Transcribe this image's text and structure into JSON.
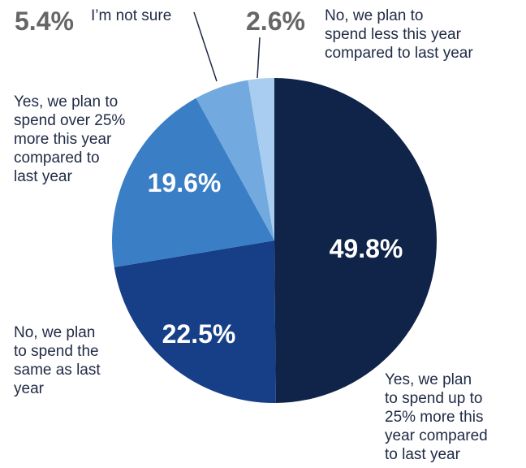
{
  "chart_data": {
    "type": "pie",
    "start_angle_deg": 0,
    "direction": "clockwise",
    "slices": [
      {
        "label": "Yes, we plan to spend up to 25% more this year compared to last year",
        "value": 49.8,
        "value_label": "49.8%",
        "color": "#0f2448"
      },
      {
        "label": "No, we plan to spend the same as last year",
        "value": 22.5,
        "value_label": "22.5%",
        "color": "#173f87"
      },
      {
        "label": "Yes, we plan to spend over 25% more this year compared to last year",
        "value": 19.6,
        "value_label": "19.6%",
        "color": "#3a7ec6"
      },
      {
        "label": "I'm not sure",
        "value": 5.4,
        "value_label": "5.4%",
        "color": "#72aadf"
      },
      {
        "label": "No, we plan to spend less this year compared to last year",
        "value": 2.6,
        "value_label": "2.6%",
        "color": "#a9cdf0"
      }
    ]
  },
  "labels": {
    "up_to_25": [
      "Yes, we plan",
      "to spend up to",
      "25% more this",
      "year compared",
      "to last year"
    ],
    "same": [
      "No, we plan",
      "to spend the",
      "same as last",
      "year"
    ],
    "over_25": [
      "Yes, we plan to",
      "spend over 25%",
      "more this year",
      "compared to",
      "last year"
    ],
    "not_sure": [
      "I’m not sure"
    ],
    "less": [
      "No, we plan to",
      "spend less this year",
      "compared to last year"
    ]
  }
}
